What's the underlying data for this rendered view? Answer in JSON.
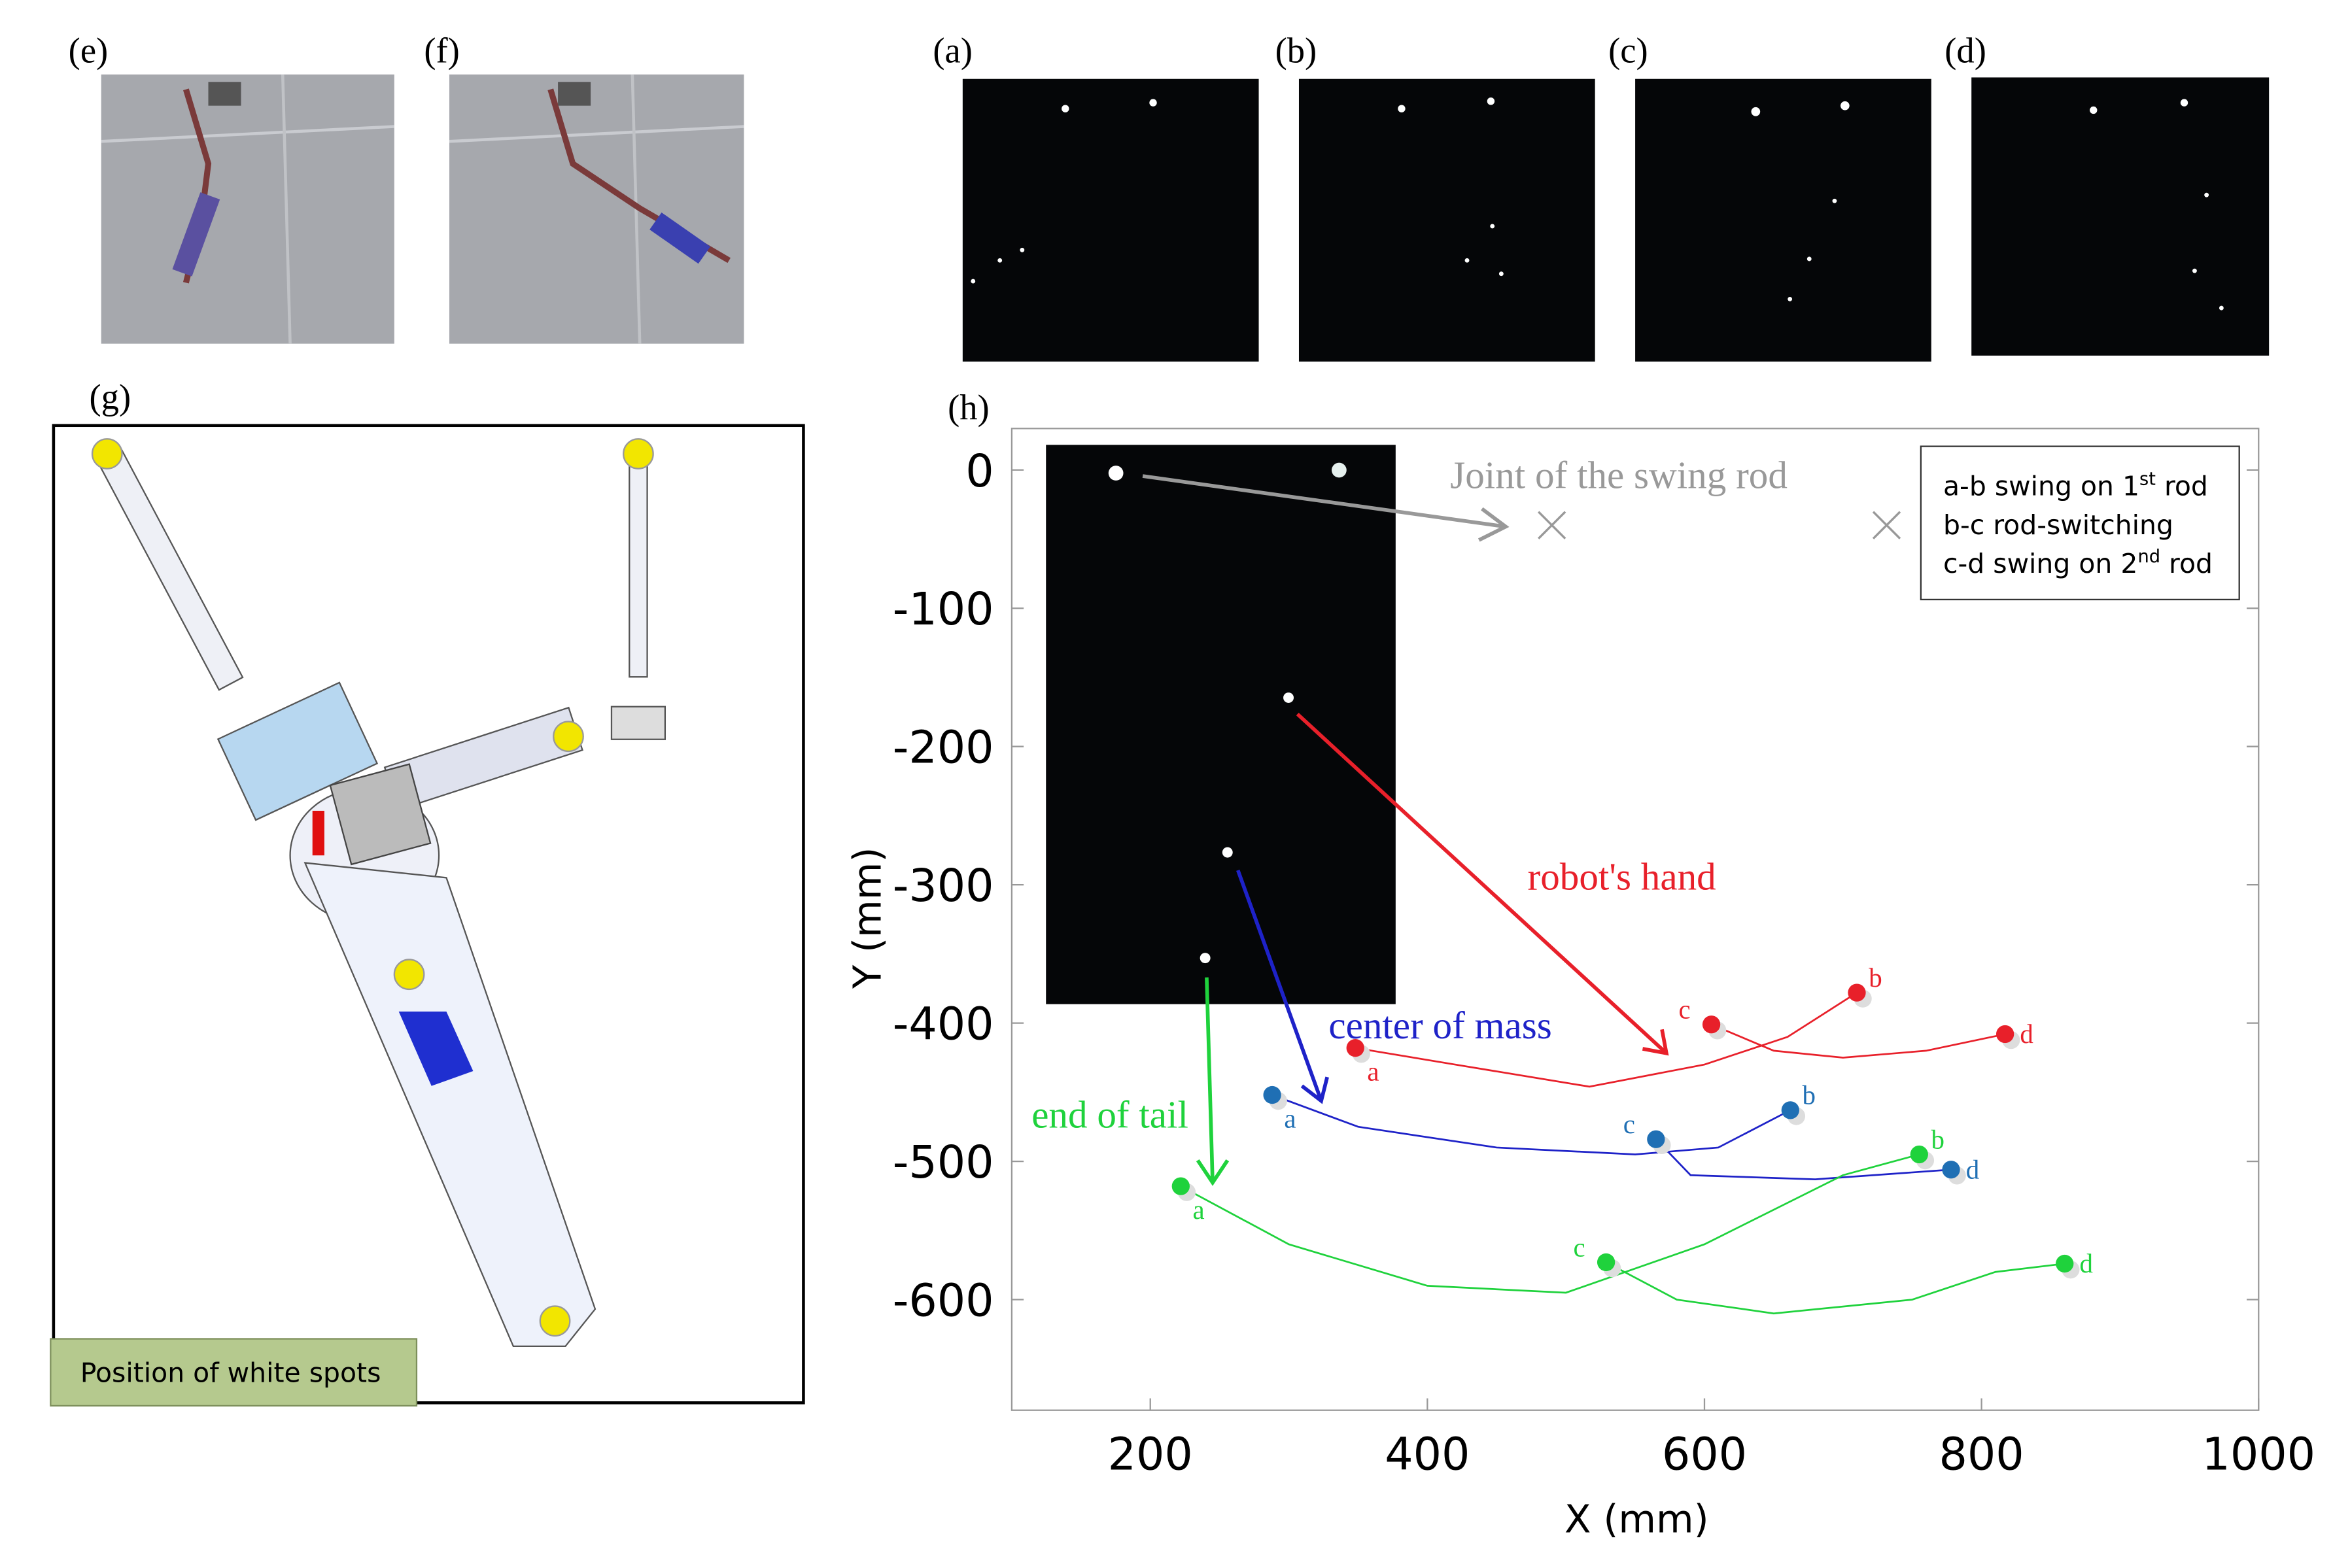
{
  "panels": {
    "e": "(e)",
    "f": "(f)",
    "a": "(a)",
    "b": "(b)",
    "c": "(c)",
    "d": "(d)",
    "g": "(g)",
    "h": "(h)"
  },
  "g_caption": "Position of white spots",
  "chart_data": {
    "type": "line",
    "xlabel": "X (mm)",
    "ylabel": "Y (mm)",
    "xlim": [
      100,
      1000
    ],
    "xticks": [
      200,
      400,
      600,
      800,
      1000
    ],
    "ylim": [
      -680,
      30
    ],
    "yticks": [
      0,
      -100,
      -200,
      -300,
      -400,
      -500,
      -600
    ],
    "annotations": {
      "joint": "Joint of the swing rod"
    },
    "legend_box": [
      [
        "a-b swing on 1",
        "st",
        " rod"
      ],
      [
        "b-c rod-switching"
      ],
      [
        "c-d swing on 2",
        "nd",
        " rod"
      ]
    ],
    "series": [
      {
        "name": "robot's hand",
        "color": "#e8202a",
        "x": [
          348,
          420,
          517,
          600,
          660,
          710,
          null,
          605,
          650,
          700,
          760,
          817
        ],
        "y": [
          -418,
          -430,
          -446,
          -430,
          -410,
          -378,
          null,
          -401,
          -420,
          -425,
          -420,
          -408
        ],
        "markers": {
          "labels": [
            "a",
            "b",
            "c",
            "d"
          ],
          "x": [
            348,
            710,
            605,
            817
          ],
          "y": [
            -418,
            -378,
            -401,
            -408
          ]
        }
      },
      {
        "name": "center of mass",
        "color": "#1e22c8",
        "marker_color": "#1f6fb4",
        "x": [
          288,
          350,
          450,
          550,
          610,
          662,
          null,
          565,
          590,
          680,
          778
        ],
        "y": [
          -452,
          -475,
          -490,
          -495,
          -490,
          -463,
          null,
          -484,
          -510,
          -513,
          -506
        ],
        "markers": {
          "labels": [
            "a",
            "b",
            "c",
            "d"
          ],
          "x": [
            288,
            662,
            565,
            778
          ],
          "y": [
            -452,
            -463,
            -484,
            -506
          ]
        }
      },
      {
        "name": "end of tail",
        "color": "#1fd23c",
        "x": [
          222,
          300,
          400,
          500,
          600,
          700,
          755,
          null,
          529,
          580,
          650,
          750,
          810,
          860
        ],
        "y": [
          -518,
          -560,
          -590,
          -595,
          -560,
          -510,
          -495,
          null,
          -573,
          -600,
          -610,
          -600,
          -580,
          -574
        ],
        "markers": {
          "labels": [
            "a",
            "b",
            "c",
            "d"
          ],
          "x": [
            222,
            755,
            529,
            860
          ],
          "y": [
            -518,
            -495,
            -573,
            -574
          ]
        }
      }
    ]
  }
}
